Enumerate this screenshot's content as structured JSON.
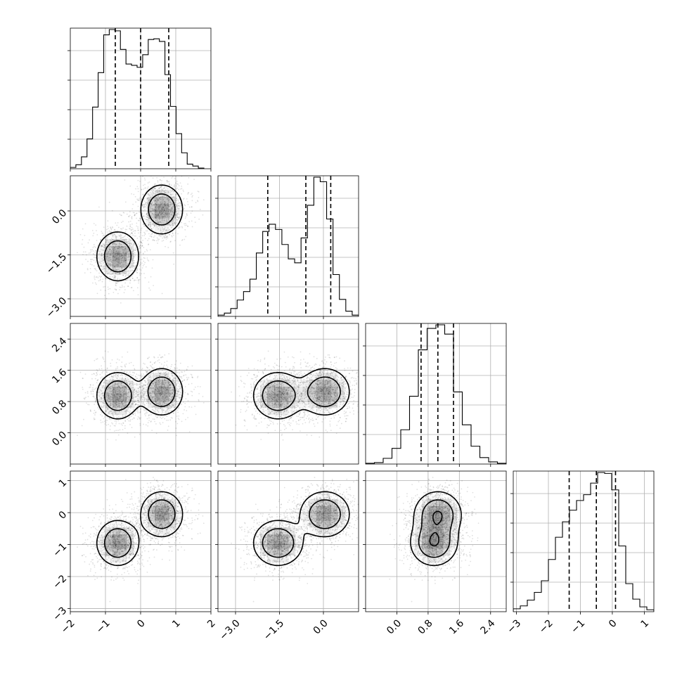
{
  "chart_data": {
    "type": "corner",
    "grid": true,
    "parameters": [
      {
        "id": "p0",
        "range": [
          -2.0,
          2.0
        ],
        "ticks": [
          -2,
          -1,
          0,
          1,
          2
        ],
        "tick_labels": [
          "−2",
          "−1",
          "0",
          "1",
          "2"
        ],
        "quantiles": [
          -0.72,
          0.0,
          0.8
        ],
        "hist_edges": [
          -2.0,
          1.8
        ],
        "hist_counts": [
          0.2,
          0.6,
          1.8,
          4.5,
          9.3,
          14.5,
          20.2,
          21.0,
          20.8,
          18.0,
          15.8,
          15.6,
          15.3,
          17.2,
          19.5,
          19.6,
          19.2,
          14.2,
          9.4,
          5.3,
          2.4,
          0.7,
          0.4,
          0.1
        ]
      },
      {
        "id": "p1",
        "range": [
          -3.6,
          1.2
        ],
        "ticks": [
          -3.0,
          -1.5,
          0.0
        ],
        "tick_labels": [
          "−3.0",
          "−1.5",
          "0.0"
        ],
        "quantiles": [
          -1.9,
          -0.6,
          0.25
        ],
        "hist_edges": [
          -3.6,
          1.2
        ],
        "hist_counts": [
          0.2,
          0.5,
          1.2,
          2.5,
          3.8,
          5.7,
          9.7,
          13.0,
          14.1,
          13.3,
          11.0,
          8.8,
          8.2,
          12.0,
          17.0,
          21.3,
          20.6,
          14.9,
          6.4,
          2.6,
          0.8,
          0.2
        ]
      },
      {
        "id": "p2",
        "range": [
          -0.8,
          2.8
        ],
        "ticks": [
          0.0,
          0.8,
          1.6,
          2.4
        ],
        "tick_labels": [
          "0.0",
          "0.8",
          "1.6",
          "2.4"
        ],
        "quantiles": [
          0.62,
          1.05,
          1.45
        ],
        "hist_edges": [
          -0.8,
          2.8
        ],
        "hist_counts": [
          0.1,
          0.2,
          0.8,
          2.2,
          4.8,
          9.5,
          16.0,
          19.0,
          19.5,
          18.2,
          10.1,
          5.5,
          2.5,
          0.9,
          0.3,
          0.1
        ]
      },
      {
        "id": "p3",
        "range": [
          -3.1,
          1.3
        ],
        "ticks": [
          -3,
          -2,
          -1,
          0,
          1
        ],
        "tick_labels": [
          "−3",
          "−2",
          "−1",
          "0",
          "1"
        ],
        "quantiles": [
          -1.35,
          -0.5,
          0.1
        ],
        "hist_edges": [
          -3.1,
          1.3
        ],
        "hist_counts": [
          0.3,
          0.6,
          1.2,
          2.0,
          3.2,
          5.4,
          7.7,
          9.3,
          10.5,
          11.5,
          12.1,
          13.3,
          14.4,
          14.3,
          12.6,
          6.8,
          2.9,
          1.3,
          0.5,
          0.2
        ]
      }
    ],
    "modes": [
      {
        "p0": -0.65,
        "p1": -1.55,
        "p2": 0.95,
        "p3": -0.95,
        "weight": 0.5
      },
      {
        "p0": 0.6,
        "p1": 0.05,
        "p2": 1.05,
        "p3": -0.05,
        "weight": 0.5
      }
    ]
  }
}
